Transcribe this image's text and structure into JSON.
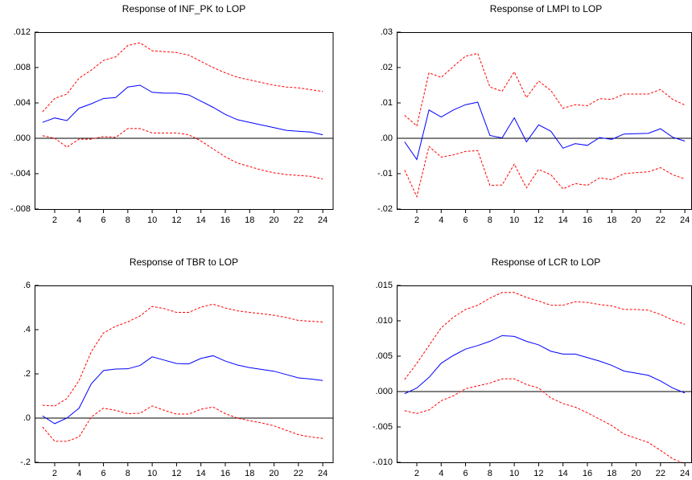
{
  "chart_data": [
    {
      "type": "line",
      "title": "Response of INF_PK to LOP",
      "x": [
        1,
        2,
        3,
        4,
        5,
        6,
        7,
        8,
        9,
        10,
        11,
        12,
        13,
        14,
        15,
        16,
        17,
        18,
        19,
        20,
        21,
        22,
        23,
        24
      ],
      "xlim": [
        0.35,
        24.85
      ],
      "xticks": [
        2,
        4,
        6,
        8,
        10,
        12,
        14,
        16,
        18,
        20,
        22,
        24
      ],
      "ylim": [
        -0.008,
        0.012
      ],
      "yticks": [
        {
          "value": -0.008,
          "label": "-.008"
        },
        {
          "value": -0.004,
          "label": "-.004"
        },
        {
          "value": 0,
          "label": ".000"
        },
        {
          "value": 0.004,
          "label": ".004"
        },
        {
          "value": 0.008,
          "label": ".008"
        },
        {
          "value": 0.012,
          "label": ".012"
        }
      ],
      "zero_line": true,
      "series": [
        {
          "color": "#0000ff",
          "line_style": "solid",
          "values": [
            0.0018,
            0.0023,
            0.002,
            0.0034,
            0.0039,
            0.0045,
            0.0046,
            0.0058,
            0.006,
            0.0052,
            0.0051,
            0.0051,
            0.0049,
            0.0042,
            0.0035,
            0.0027,
            0.0021,
            0.0018,
            0.0015,
            0.0012,
            0.0009,
            0.0008,
            0.0007,
            0.0004
          ]
        },
        {
          "color": "#ff0000",
          "line_style": "dashed",
          "values": [
            0.003,
            0.0045,
            0.005,
            0.0068,
            0.0077,
            0.0088,
            0.0092,
            0.0105,
            0.0108,
            0.0099,
            0.0098,
            0.0097,
            0.0094,
            0.0087,
            0.008,
            0.0074,
            0.0069,
            0.0066,
            0.0063,
            0.006,
            0.0058,
            0.0057,
            0.0055,
            0.0053
          ]
        },
        {
          "color": "#ff0000",
          "line_style": "dashed",
          "values": [
            0.0003,
            0.0,
            -0.001,
            -0.0001,
            -0.0001,
            0.0002,
            0.0001,
            0.0011,
            0.0011,
            0.0006,
            0.0006,
            0.0006,
            0.0004,
            -0.0003,
            -0.0012,
            -0.0021,
            -0.0028,
            -0.0032,
            -0.0036,
            -0.0039,
            -0.0041,
            -0.0042,
            -0.0043,
            -0.0046
          ]
        }
      ]
    },
    {
      "type": "line",
      "title": "Response of LMPI to LOP",
      "x": [
        1,
        2,
        3,
        4,
        5,
        6,
        7,
        8,
        9,
        10,
        11,
        12,
        13,
        14,
        15,
        16,
        17,
        18,
        19,
        20,
        21,
        22,
        23,
        24
      ],
      "xlim": [
        0.35,
        24.85
      ],
      "xticks": [
        2,
        4,
        6,
        8,
        10,
        12,
        14,
        16,
        18,
        20,
        22,
        24
      ],
      "ylim": [
        -0.02,
        0.03
      ],
      "yticks": [
        {
          "value": -0.02,
          "label": "-.02"
        },
        {
          "value": -0.01,
          "label": "-.01"
        },
        {
          "value": 0,
          "label": ".00"
        },
        {
          "value": 0.01,
          "label": ".01"
        },
        {
          "value": 0.02,
          "label": ".02"
        },
        {
          "value": 0.03,
          "label": ".03"
        }
      ],
      "zero_line": true,
      "series": [
        {
          "color": "#0000ff",
          "line_style": "solid",
          "values": [
            -0.001,
            -0.006,
            0.008,
            0.006,
            0.008,
            0.0095,
            0.0102,
            0.0008,
            0.0001,
            0.0058,
            -0.001,
            0.0038,
            0.002,
            -0.0028,
            -0.0015,
            -0.002,
            0.0002,
            -0.0003,
            0.0012,
            0.0013,
            0.0014,
            0.0027,
            0.0003,
            -0.0008
          ]
        },
        {
          "color": "#ff0000",
          "line_style": "dashed",
          "values": [
            0.0065,
            0.0035,
            0.0185,
            0.0172,
            0.0203,
            0.0232,
            0.024,
            0.0145,
            0.0133,
            0.0188,
            0.0115,
            0.0162,
            0.0135,
            0.0085,
            0.0095,
            0.0092,
            0.0112,
            0.011,
            0.0125,
            0.0125,
            0.0125,
            0.0138,
            0.011,
            0.0094
          ]
        },
        {
          "color": "#ff0000",
          "line_style": "dashed",
          "values": [
            -0.009,
            -0.0165,
            -0.0023,
            -0.0053,
            -0.0047,
            -0.0037,
            -0.0035,
            -0.0133,
            -0.0132,
            -0.0073,
            -0.014,
            -0.0088,
            -0.0103,
            -0.0143,
            -0.0128,
            -0.0133,
            -0.0112,
            -0.0117,
            -0.01,
            -0.0097,
            -0.0095,
            -0.0083,
            -0.0103,
            -0.0115
          ]
        }
      ]
    },
    {
      "type": "line",
      "title": "Response of TBR to LOP",
      "x": [
        1,
        2,
        3,
        4,
        5,
        6,
        7,
        8,
        9,
        10,
        11,
        12,
        13,
        14,
        15,
        16,
        17,
        18,
        19,
        20,
        21,
        22,
        23,
        24
      ],
      "xlim": [
        0.35,
        24.85
      ],
      "xticks": [
        2,
        4,
        6,
        8,
        10,
        12,
        14,
        16,
        18,
        20,
        22,
        24
      ],
      "ylim": [
        -0.2,
        0.6
      ],
      "yticks": [
        {
          "value": -0.2,
          "label": "-.2"
        },
        {
          "value": 0,
          "label": ".0"
        },
        {
          "value": 0.2,
          "label": ".2"
        },
        {
          "value": 0.4,
          "label": ".4"
        },
        {
          "value": 0.6,
          "label": ".6"
        }
      ],
      "zero_line": true,
      "series": [
        {
          "color": "#0000ff",
          "line_style": "solid",
          "values": [
            0.01,
            -0.025,
            0.0,
            0.045,
            0.155,
            0.215,
            0.222,
            0.223,
            0.238,
            0.277,
            0.262,
            0.247,
            0.245,
            0.27,
            0.282,
            0.258,
            0.24,
            0.228,
            0.22,
            0.212,
            0.197,
            0.182,
            0.177,
            0.17
          ]
        },
        {
          "color": "#ff0000",
          "line_style": "dashed",
          "values": [
            0.058,
            0.055,
            0.088,
            0.17,
            0.3,
            0.385,
            0.415,
            0.435,
            0.462,
            0.505,
            0.495,
            0.478,
            0.478,
            0.502,
            0.515,
            0.498,
            0.485,
            0.478,
            0.472,
            0.465,
            0.455,
            0.442,
            0.438,
            0.435
          ]
        },
        {
          "color": "#ff0000",
          "line_style": "dashed",
          "values": [
            -0.04,
            -0.105,
            -0.105,
            -0.085,
            0.005,
            0.045,
            0.035,
            0.02,
            0.022,
            0.055,
            0.035,
            0.018,
            0.018,
            0.04,
            0.05,
            0.02,
            0.0,
            -0.012,
            -0.022,
            -0.035,
            -0.055,
            -0.075,
            -0.085,
            -0.092
          ]
        }
      ]
    },
    {
      "type": "line",
      "title": "Response of LCR to LOP",
      "x": [
        1,
        2,
        3,
        4,
        5,
        6,
        7,
        8,
        9,
        10,
        11,
        12,
        13,
        14,
        15,
        16,
        17,
        18,
        19,
        20,
        21,
        22,
        23,
        24
      ],
      "xlim": [
        0.35,
        24.85
      ],
      "xticks": [
        2,
        4,
        6,
        8,
        10,
        12,
        14,
        16,
        18,
        20,
        22,
        24
      ],
      "ylim": [
        -0.01,
        0.015
      ],
      "yticks": [
        {
          "value": -0.01,
          "label": "-.010"
        },
        {
          "value": -0.005,
          "label": "-.005"
        },
        {
          "value": 0,
          "label": ".000"
        },
        {
          "value": 0.005,
          "label": ".005"
        },
        {
          "value": 0.01,
          "label": ".010"
        },
        {
          "value": 0.015,
          "label": ".015"
        }
      ],
      "zero_line": true,
      "series": [
        {
          "color": "#0000ff",
          "line_style": "solid",
          "values": [
            -0.0003,
            0.0005,
            0.002,
            0.004,
            0.0051,
            0.006,
            0.0065,
            0.0071,
            0.0079,
            0.0078,
            0.0071,
            0.0066,
            0.0057,
            0.0053,
            0.0053,
            0.0048,
            0.0043,
            0.0037,
            0.0029,
            0.0026,
            0.0023,
            0.0015,
            0.0005,
            -0.0002
          ]
        },
        {
          "color": "#ff0000",
          "line_style": "dashed",
          "values": [
            0.0017,
            0.004,
            0.0065,
            0.009,
            0.0105,
            0.0116,
            0.0122,
            0.0132,
            0.014,
            0.014,
            0.0133,
            0.0128,
            0.0122,
            0.0122,
            0.0127,
            0.0126,
            0.0123,
            0.0121,
            0.0116,
            0.0116,
            0.0115,
            0.0109,
            0.0101,
            0.0095
          ]
        },
        {
          "color": "#ff0000",
          "line_style": "dashed",
          "values": [
            -0.0027,
            -0.0031,
            -0.0026,
            -0.0013,
            -0.0006,
            0.0004,
            0.0008,
            0.0012,
            0.0018,
            0.0018,
            0.001,
            0.0005,
            -0.0009,
            -0.0017,
            -0.0022,
            -0.003,
            -0.0039,
            -0.0048,
            -0.006,
            -0.0066,
            -0.0072,
            -0.0083,
            -0.0095,
            -0.0102
          ]
        }
      ]
    }
  ]
}
